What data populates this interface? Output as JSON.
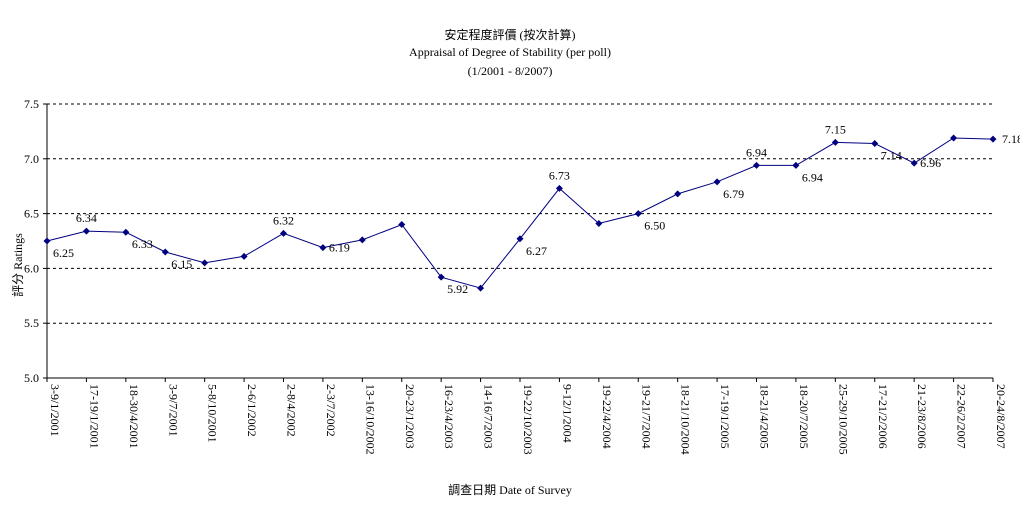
{
  "chart_data": {
    "type": "line",
    "title": "安定程度評價 (按次計算)",
    "subtitle": "Appraisal of Degree of Stability (per poll)",
    "subtitle2": "(1/2001 - 8/2007)",
    "xlabel": "調查日期 Date of Survey",
    "ylabel": "評分 Ratings",
    "ylim": [
      5.0,
      7.5
    ],
    "yticks": [
      "7.5",
      "7.0",
      "6.5",
      "6.0",
      "5.5",
      "5.0"
    ],
    "grid": true,
    "line_color": "#000080",
    "categories": [
      "3-9/1/2001",
      "17-19/1/2001",
      "18-30/4/2001",
      "3-9/7/2001",
      "5-8/10/2001",
      "2-6/1/2002",
      "2-8/4/2002",
      "2-3/7/2002",
      "13-16/10/2002",
      "20-23/1/2003",
      "16-23/4/2003",
      "14-16/7/2003",
      "19-22/10/2003",
      "9-12/1/2004",
      "19-22/4/2004",
      "19-21/7/2004",
      "18-21/10/2004",
      "17-19/1/2005",
      "18-21/4/2005",
      "18-20/7/2005",
      "25-29/10/2005",
      "17-21/2/2006",
      "21-23/8/2006",
      "22-26/2/2007",
      "20-24/8/2007"
    ],
    "values": [
      6.25,
      6.34,
      6.33,
      6.15,
      6.05,
      6.11,
      6.32,
      6.19,
      6.26,
      6.4,
      5.92,
      5.82,
      6.27,
      6.73,
      6.41,
      6.5,
      6.68,
      6.79,
      6.94,
      6.94,
      7.15,
      7.14,
      6.96,
      7.19,
      7.18
    ],
    "data_labels": [
      "6.25",
      "6.34",
      "6.33",
      "6.15",
      "",
      "",
      "6.32",
      "6.19",
      "",
      "",
      "5.92",
      "",
      "6.27",
      "6.73",
      "",
      "6.50",
      "",
      "6.79",
      "6.94",
      "6.94",
      "7.15",
      "7.14",
      "6.96",
      "",
      "7.18"
    ]
  }
}
